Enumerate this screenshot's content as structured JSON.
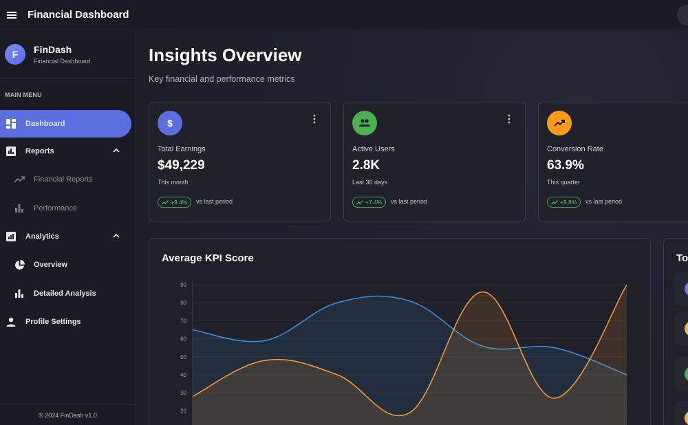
{
  "topbar": {
    "title": "Financial Dashboard",
    "menu_icon": "hamburger-menu-icon"
  },
  "brand": {
    "initial": "F",
    "name": "FinDash",
    "subtitle": "Financial Dashboard"
  },
  "sidebar": {
    "menu_label": "MAIN MENU",
    "items": [
      {
        "label": "Dashboard",
        "icon": "dashboard-icon",
        "active": true
      },
      {
        "label": "Reports",
        "icon": "report-icon",
        "expanded": true
      },
      {
        "label": "Financial Reports",
        "icon": "trending-icon"
      },
      {
        "label": "Performance",
        "icon": "bar-chart-icon"
      },
      {
        "label": "Analytics",
        "icon": "analytics-icon",
        "expanded": true
      },
      {
        "label": "Overview",
        "icon": "pie-chart-icon"
      },
      {
        "label": "Detailed Analysis",
        "icon": "bar-chart-icon"
      },
      {
        "label": "Profile Settings",
        "icon": "person-icon"
      }
    ],
    "footer": "© 2024 FinDash v1.0"
  },
  "main": {
    "title": "Insights Overview",
    "subtitle": "Key financial and performance metrics"
  },
  "cards": [
    {
      "label": "Total Earnings",
      "value": "$49,229",
      "period": "This month",
      "change": "+9.4%",
      "vs": "vs last period",
      "icon": "dollar-icon",
      "color": "#5b6fe0"
    },
    {
      "label": "Active Users",
      "value": "2.8K",
      "period": "Last 30 days",
      "change": "+7.4%",
      "vs": "vs last period",
      "icon": "users-icon",
      "color": "#4caf50"
    },
    {
      "label": "Conversion Rate",
      "value": "63.9%",
      "period": "This quarter",
      "change": "+9.8%",
      "vs": "vs last period",
      "icon": "trending-up-icon",
      "color": "#ff9a1a"
    }
  ],
  "colors": {
    "accent": "#5b6fe0",
    "positive": "#4cc36c",
    "series_blue": "#3a8fd4",
    "series_orange": "#f59a2d"
  },
  "chart_data": {
    "type": "line",
    "title": "Average KPI Score",
    "ylim": [
      20,
      90
    ],
    "y_ticks": [
      "90",
      "80",
      "70",
      "60",
      "50",
      "40",
      "30",
      "20"
    ],
    "grid": true,
    "series": [
      {
        "color": "#3a8fd4",
        "values": [
          65,
          59,
          80,
          81,
          56,
          55,
          40
        ]
      },
      {
        "color": "#f59a2d",
        "values": [
          28,
          48,
          40,
          19,
          86,
          27,
          90
        ]
      }
    ]
  },
  "side_panel": {
    "title": "Top"
  }
}
